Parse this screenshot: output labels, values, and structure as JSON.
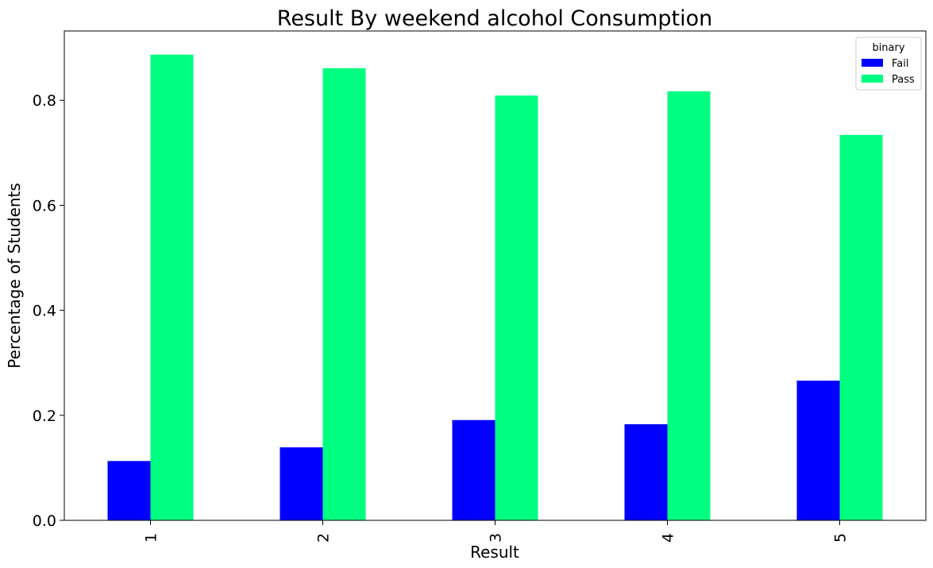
{
  "chart_data": {
    "type": "bar",
    "title": "Result By weekend alcohol Consumption",
    "xlabel": "Result",
    "ylabel": "Percentage of Students",
    "categories": [
      "1",
      "2",
      "3",
      "4",
      "5"
    ],
    "series": [
      {
        "name": "Fail",
        "color": "#0000ff",
        "values": [
          0.113,
          0.139,
          0.191,
          0.183,
          0.266
        ]
      },
      {
        "name": "Pass",
        "color": "#00ff80",
        "values": [
          0.887,
          0.861,
          0.809,
          0.817,
          0.734
        ]
      }
    ],
    "ylim": [
      0,
      0.932
    ],
    "yticks": [
      "0.0",
      "0.2",
      "0.4",
      "0.6",
      "0.8"
    ],
    "ytick_values": [
      0,
      0.2,
      0.4,
      0.6,
      0.8
    ],
    "grid": false,
    "legend": {
      "title": "binary",
      "placement": "top-right"
    }
  }
}
